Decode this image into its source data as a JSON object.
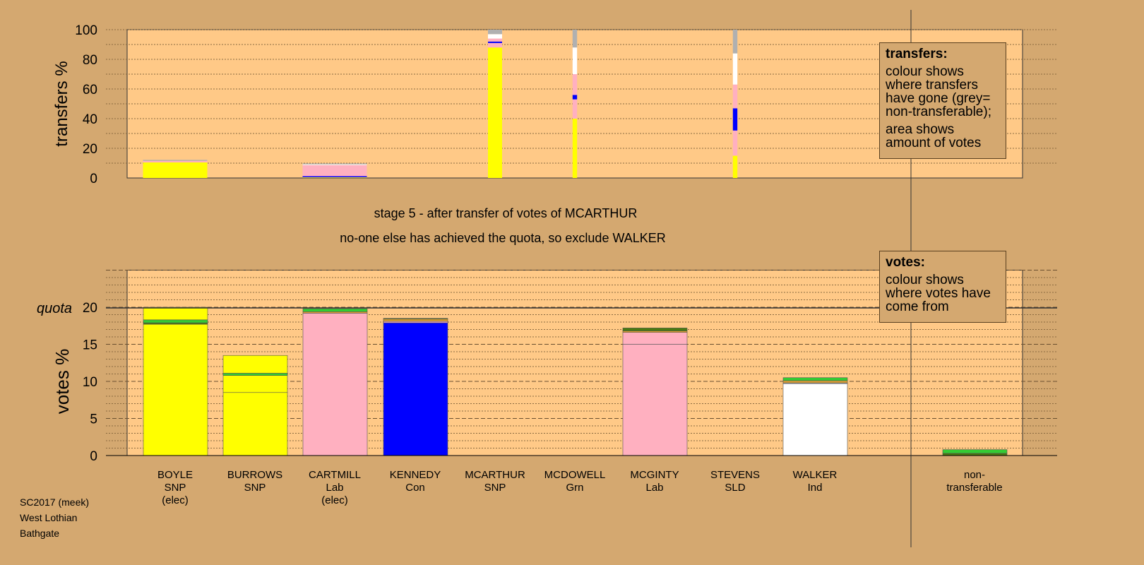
{
  "stage_title": "stage 5 - after transfer of votes of MCARTHUR",
  "stage_subtitle": "no-one else has achieved the quota, so exclude WALKER",
  "legend_transfers": {
    "title": "transfers:",
    "line1": "colour shows where transfers have gone (grey= non-transferable);",
    "line2": "area shows amount of votes"
  },
  "legend_votes": {
    "title": "votes:",
    "line1": "colour shows where votes have come from"
  },
  "footer": [
    "SC2017 (meek)",
    "West Lothian",
    "Bathgate"
  ],
  "colors": {
    "SNP": "#ffff00",
    "Lab": "#ffb0c0",
    "Con": "#0000ff",
    "Ind": "#ffffff",
    "Grn": "#33cc33",
    "SLD": "#e0a030",
    "nontrans": "#b0b0b0",
    "dark": "#4a7a10",
    "plot_bg": "#ffc987",
    "bg": "#d4a870"
  },
  "chart_data": [
    {
      "type": "bar",
      "title": "transfers",
      "ylabel": "transfers %",
      "ylim": [
        0,
        100
      ],
      "yticks": [
        0,
        20,
        40,
        60,
        80,
        100
      ],
      "series": [
        {
          "candidate": "BOYLE",
          "relative_amount": 1.0,
          "segments": [
            [
              "SNP",
              10.5
            ],
            [
              "Lab",
              1.0
            ],
            [
              "nontrans",
              0.7
            ]
          ]
        },
        {
          "candidate": "CARTMILL",
          "relative_amount": 1.0,
          "segments": [
            [
              "SNP",
              0.4
            ],
            [
              "Con",
              0.8
            ],
            [
              "Lab",
              7.5
            ],
            [
              "Ind",
              0.5
            ],
            [
              "nontrans",
              0.6
            ]
          ]
        },
        {
          "candidate": "MCARTHUR",
          "relative_amount": 0.22,
          "segments": [
            [
              "SNP",
              88
            ],
            [
              "Lab",
              3
            ],
            [
              "Con",
              1
            ],
            [
              "Lab",
              2
            ],
            [
              "Ind",
              3
            ],
            [
              "nontrans",
              3
            ]
          ]
        },
        {
          "candidate": "MCDOWELL",
          "relative_amount": 0.07,
          "segments": [
            [
              "SNP",
              40
            ],
            [
              "Lab",
              13
            ],
            [
              "Con",
              3
            ],
            [
              "Lab",
              14
            ],
            [
              "Ind",
              18
            ],
            [
              "nontrans",
              12
            ]
          ]
        },
        {
          "candidate": "STEVENS",
          "relative_amount": 0.07,
          "segments": [
            [
              "SNP",
              15
            ],
            [
              "Lab",
              17
            ],
            [
              "Con",
              15
            ],
            [
              "Lab",
              16
            ],
            [
              "Ind",
              21
            ],
            [
              "nontrans",
              16
            ]
          ]
        }
      ]
    },
    {
      "type": "bar",
      "title": "votes",
      "ylabel": "votes %",
      "ylim": [
        0,
        25
      ],
      "yticks": [
        0,
        5,
        10,
        15,
        20
      ],
      "quota": 19.9,
      "quota_label": "quota",
      "categories": [
        {
          "name": "BOYLE",
          "party": "SNP",
          "note": "(elec)",
          "segments": [
            [
              "SNP",
              17.7
            ],
            [
              "dark",
              0.2
            ],
            [
              "Grn",
              0.4
            ],
            [
              "SNP",
              1.7
            ]
          ]
        },
        {
          "name": "BURROWS",
          "party": "SNP",
          "note": "",
          "segments": [
            [
              "SNP",
              8.5
            ],
            [
              "SNP",
              2.3
            ],
            [
              "Grn",
              0.3
            ],
            [
              "SNP",
              2.4
            ]
          ]
        },
        {
          "name": "CARTMILL",
          "party": "Lab",
          "note": "(elec)",
          "segments": [
            [
              "Lab",
              19.2
            ],
            [
              "SLD",
              0.2
            ],
            [
              "Grn",
              0.4
            ]
          ]
        },
        {
          "name": "KENNEDY",
          "party": "Con",
          "note": "",
          "segments": [
            [
              "Con",
              17.9
            ],
            [
              "Lab",
              0.2
            ],
            [
              "SLD",
              0.3
            ],
            [
              "dark",
              0.1
            ]
          ]
        },
        {
          "name": "MCARTHUR",
          "party": "SNP",
          "note": "",
          "segments": []
        },
        {
          "name": "MCDOWELL",
          "party": "Grn",
          "note": "",
          "segments": []
        },
        {
          "name": "MCGINTY",
          "party": "Lab",
          "note": "",
          "segments": [
            [
              "Lab",
              15.0
            ],
            [
              "Lab",
              1.6
            ],
            [
              "SLD",
              0.2
            ],
            [
              "dark",
              0.4
            ]
          ]
        },
        {
          "name": "STEVENS",
          "party": "SLD",
          "note": "",
          "segments": []
        },
        {
          "name": "WALKER",
          "party": "Ind",
          "note": "",
          "segments": [
            [
              "Ind",
              9.7
            ],
            [
              "nontrans",
              0.1
            ],
            [
              "SLD",
              0.3
            ],
            [
              "Grn",
              0.4
            ]
          ]
        }
      ],
      "nontransferable": {
        "label1": "non-",
        "label2": "transferable",
        "segments": [
          [
            "dark",
            0.3
          ],
          [
            "Grn",
            0.5
          ]
        ]
      }
    }
  ]
}
